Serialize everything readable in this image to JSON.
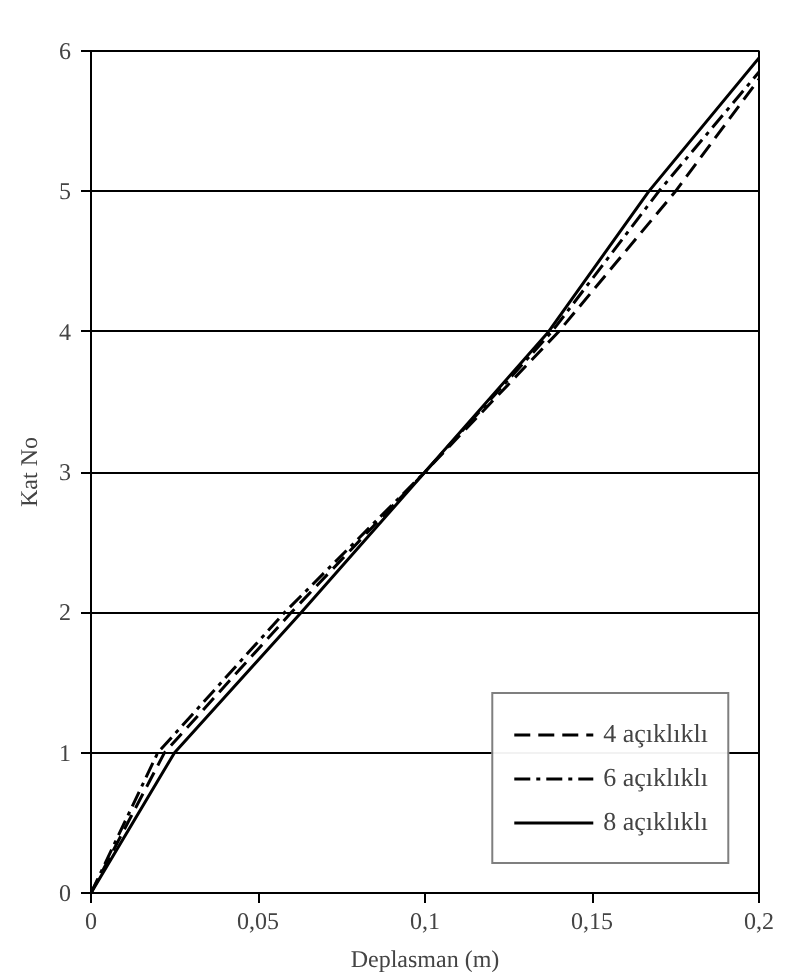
{
  "chart_data": {
    "type": "line",
    "xlabel": "Deplasman (m)",
    "ylabel": "Kat No",
    "xlim": [
      0,
      0.2
    ],
    "ylim": [
      0,
      6
    ],
    "xticks": [
      0,
      {
        "value": 0.05,
        "label": "0,05"
      },
      {
        "value": 0.1,
        "label": "0,1"
      },
      {
        "value": 0.15,
        "label": "0,15"
      },
      {
        "value": 0.2,
        "label": "0,2"
      }
    ],
    "yticks": [
      0,
      1,
      2,
      3,
      4,
      5,
      6
    ],
    "grid": "y",
    "legend": "bottom right",
    "series": [
      {
        "name": "4 açıklıklı",
        "color": "#000000",
        "line_style": "dashed",
        "x": [
          0,
          0.022,
          0.06,
          0.1,
          0.14,
          0.175,
          0.2
        ],
        "values": [
          0,
          1,
          2,
          3,
          4,
          5,
          5.8
        ]
      },
      {
        "name": "6 açıklıklı",
        "color": "#000000",
        "line_style": "dashdot",
        "x": [
          0,
          0.02,
          0.058,
          0.1,
          0.138,
          0.17,
          0.2
        ],
        "values": [
          0,
          1,
          2,
          3,
          4,
          5,
          5.85
        ]
      },
      {
        "name": "8 açıklıklı",
        "color": "#000000",
        "line_style": "solid",
        "x": [
          0,
          0.025,
          0.063,
          0.1,
          0.137,
          0.167,
          0.2
        ],
        "values": [
          0,
          1,
          2,
          3,
          4,
          5,
          5.95
        ]
      }
    ]
  }
}
